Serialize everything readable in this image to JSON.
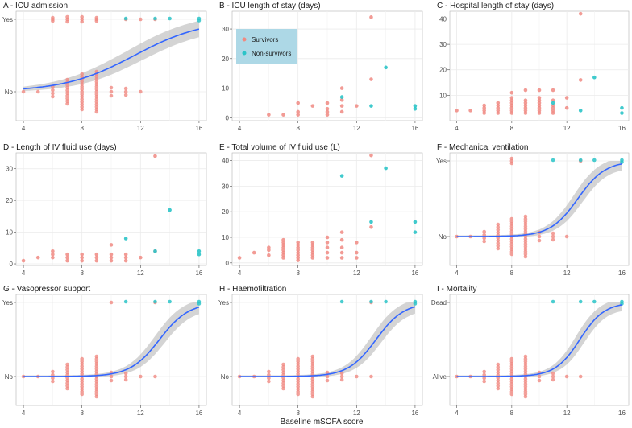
{
  "colors": {
    "survivors": "#F08A82",
    "non_survivors": "#2BC4C8",
    "fit": "#3366FF",
    "ribbon": "#BDBDBD",
    "legend_bg": "#ADD8E6"
  },
  "xlabel": "Baseline mSOFA score",
  "legend": {
    "entries": [
      "Survivors",
      "Non-survivors"
    ],
    "placement": "inside panel B, top-left"
  },
  "chart_data": [
    {
      "panel": "A",
      "type": "scatter",
      "title": "A - ICU admission",
      "binary": true,
      "ylabels": [
        "No",
        "Yes"
      ],
      "xlim": [
        3.5,
        16.5
      ],
      "xticks": [
        4,
        8,
        12,
        16
      ],
      "fit": {
        "type": "logistic",
        "b0": -4.86,
        "b1": 0.42
      },
      "survivors_yes_x": [
        6,
        7,
        8,
        9,
        11,
        12,
        13
      ],
      "survivors_no_x": [
        4,
        5,
        6,
        7,
        8,
        9,
        10,
        11,
        12
      ],
      "non_survivors_yes_x": [
        11,
        13,
        14,
        16
      ]
    },
    {
      "panel": "B",
      "type": "scatter",
      "title": "B - ICU length of stay (days)",
      "ylim": [
        -1,
        36
      ],
      "yticks": [
        0,
        10,
        20,
        30
      ],
      "xlim": [
        3.5,
        16.5
      ],
      "xticks": [
        4,
        8,
        12,
        16
      ],
      "survivors": [
        [
          6,
          1
        ],
        [
          7,
          1
        ],
        [
          8,
          1
        ],
        [
          8,
          2
        ],
        [
          8,
          5
        ],
        [
          9,
          4
        ],
        [
          10,
          1
        ],
        [
          10,
          2
        ],
        [
          10,
          3
        ],
        [
          10,
          5
        ],
        [
          11,
          2
        ],
        [
          11,
          4
        ],
        [
          11,
          6
        ],
        [
          11,
          10
        ],
        [
          12,
          4
        ],
        [
          13,
          13
        ],
        [
          13,
          34
        ]
      ],
      "non_survivors": [
        [
          11,
          7
        ],
        [
          13,
          4
        ],
        [
          14,
          17
        ],
        [
          16,
          3
        ],
        [
          16,
          4
        ]
      ]
    },
    {
      "panel": "C",
      "type": "scatter",
      "title": "C - Hospital length of stay (days)",
      "ylim": [
        0,
        43
      ],
      "yticks": [
        10,
        20,
        30,
        40
      ],
      "xlim": [
        3.5,
        16.5
      ],
      "xticks": [
        4,
        8,
        12,
        16
      ],
      "survivors": [
        [
          4,
          4
        ],
        [
          5,
          4
        ],
        [
          6,
          3
        ],
        [
          6,
          4
        ],
        [
          6,
          5
        ],
        [
          6,
          6
        ],
        [
          7,
          3
        ],
        [
          7,
          4
        ],
        [
          7,
          5
        ],
        [
          7,
          6
        ],
        [
          7,
          7
        ],
        [
          8,
          3
        ],
        [
          8,
          4
        ],
        [
          8,
          5
        ],
        [
          8,
          6
        ],
        [
          8,
          7
        ],
        [
          8,
          8
        ],
        [
          8,
          9
        ],
        [
          8,
          11
        ],
        [
          9,
          3
        ],
        [
          9,
          4
        ],
        [
          9,
          5
        ],
        [
          9,
          6
        ],
        [
          9,
          7
        ],
        [
          9,
          8
        ],
        [
          9,
          12
        ],
        [
          10,
          3
        ],
        [
          10,
          4
        ],
        [
          10,
          5
        ],
        [
          10,
          6
        ],
        [
          10,
          7
        ],
        [
          10,
          8
        ],
        [
          10,
          9
        ],
        [
          10,
          12
        ],
        [
          11,
          3
        ],
        [
          11,
          4
        ],
        [
          11,
          5
        ],
        [
          11,
          6
        ],
        [
          11,
          8
        ],
        [
          11,
          12
        ],
        [
          12,
          5
        ],
        [
          12,
          9
        ],
        [
          13,
          16
        ],
        [
          13,
          42
        ]
      ],
      "non_survivors": [
        [
          11,
          7
        ],
        [
          13,
          4
        ],
        [
          14,
          17
        ],
        [
          16,
          3
        ],
        [
          16,
          5
        ]
      ]
    },
    {
      "panel": "D",
      "type": "scatter",
      "title": "D - Length of IV fluid use (days)",
      "ylim": [
        -0.5,
        35
      ],
      "yticks": [
        0,
        10,
        20,
        30
      ],
      "xlim": [
        3.5,
        16.5
      ],
      "xticks": [
        4,
        8,
        12,
        16
      ],
      "survivors": [
        [
          4,
          1
        ],
        [
          5,
          2
        ],
        [
          6,
          2
        ],
        [
          6,
          3
        ],
        [
          6,
          4
        ],
        [
          7,
          1
        ],
        [
          7,
          2
        ],
        [
          7,
          3
        ],
        [
          8,
          1
        ],
        [
          8,
          2
        ],
        [
          8,
          3
        ],
        [
          9,
          1
        ],
        [
          9,
          2
        ],
        [
          9,
          3
        ],
        [
          10,
          1
        ],
        [
          10,
          2
        ],
        [
          10,
          3
        ],
        [
          10,
          6
        ],
        [
          11,
          1
        ],
        [
          11,
          2
        ],
        [
          11,
          3
        ],
        [
          12,
          2
        ],
        [
          13,
          4
        ],
        [
          13,
          34
        ]
      ],
      "non_survivors": [
        [
          11,
          8
        ],
        [
          13,
          4
        ],
        [
          14,
          17
        ],
        [
          16,
          3
        ],
        [
          16,
          4
        ]
      ]
    },
    {
      "panel": "E",
      "type": "scatter",
      "title": "E - Total volume of IV fluid use (L)",
      "ylim": [
        -1,
        43
      ],
      "yticks": [
        0,
        10,
        20,
        30,
        40
      ],
      "xlim": [
        3.5,
        16.5
      ],
      "xticks": [
        4,
        8,
        12,
        16
      ],
      "survivors": [
        [
          4,
          2
        ],
        [
          5,
          4
        ],
        [
          6,
          3
        ],
        [
          6,
          5
        ],
        [
          6,
          6
        ],
        [
          7,
          2
        ],
        [
          7,
          3
        ],
        [
          7,
          4
        ],
        [
          7,
          5
        ],
        [
          7,
          6
        ],
        [
          7,
          7
        ],
        [
          7,
          8
        ],
        [
          7,
          9
        ],
        [
          8,
          1
        ],
        [
          8,
          2
        ],
        [
          8,
          3
        ],
        [
          8,
          4
        ],
        [
          8,
          5
        ],
        [
          8,
          6
        ],
        [
          8,
          7
        ],
        [
          8,
          8
        ],
        [
          9,
          2
        ],
        [
          9,
          3
        ],
        [
          9,
          4
        ],
        [
          9,
          5
        ],
        [
          9,
          6
        ],
        [
          9,
          7
        ],
        [
          9,
          8
        ],
        [
          10,
          2
        ],
        [
          10,
          4
        ],
        [
          10,
          6
        ],
        [
          10,
          8
        ],
        [
          10,
          10
        ],
        [
          11,
          2
        ],
        [
          11,
          4
        ],
        [
          11,
          6
        ],
        [
          11,
          9
        ],
        [
          11,
          12
        ],
        [
          12,
          2
        ],
        [
          12,
          4
        ],
        [
          12,
          8
        ],
        [
          13,
          14
        ],
        [
          13,
          42
        ]
      ],
      "non_survivors": [
        [
          11,
          34
        ],
        [
          13,
          16
        ],
        [
          14,
          37
        ],
        [
          16,
          12
        ],
        [
          16,
          16
        ]
      ]
    },
    {
      "panel": "F",
      "type": "scatter",
      "title": "F - Mechanical ventilation",
      "binary": true,
      "ylabels": [
        "No",
        "Yes"
      ],
      "xlim": [
        3.5,
        16.5
      ],
      "xticks": [
        4,
        8,
        12,
        16
      ],
      "fit": {
        "type": "logistic",
        "b0": -12.8,
        "b1": 1.0
      },
      "survivors_yes_x": [
        8,
        13
      ],
      "survivors_no_x": [
        4,
        5,
        6,
        7,
        8,
        9,
        10,
        11,
        12
      ],
      "non_survivors_yes_x": [
        11,
        13,
        14,
        16
      ]
    },
    {
      "panel": "G",
      "type": "scatter",
      "title": "G - Vasopressor support",
      "binary": true,
      "ylabels": [
        "No",
        "Yes"
      ],
      "xlim": [
        3.5,
        16.5
      ],
      "xticks": [
        4,
        8,
        12,
        16
      ],
      "fit": {
        "type": "logistic",
        "b0": -13.3,
        "b1": 1.0
      },
      "survivors_yes_x": [
        10,
        13
      ],
      "survivors_no_x": [
        4,
        5,
        6,
        7,
        8,
        9,
        10,
        11,
        12,
        13
      ],
      "non_survivors_yes_x": [
        11,
        13,
        14,
        16
      ]
    },
    {
      "panel": "H",
      "type": "scatter",
      "title": "H - Haemofiltration",
      "binary": true,
      "ylabels": [
        "No",
        "Yes"
      ],
      "xlim": [
        3.5,
        16.5
      ],
      "xticks": [
        4,
        8,
        12,
        16
      ],
      "fit": {
        "type": "logistic",
        "b0": -14.0,
        "b1": 1.05
      },
      "survivors_yes_x": [
        13
      ],
      "survivors_no_x": [
        4,
        5,
        6,
        7,
        8,
        9,
        10,
        11,
        12,
        13
      ],
      "non_survivors_yes_x": [
        11,
        13,
        14,
        16
      ]
    },
    {
      "panel": "I",
      "type": "scatter",
      "title": "I - Mortality",
      "binary": true,
      "ylabels": [
        "Alive",
        "Dead"
      ],
      "xlim": [
        3.5,
        16.5
      ],
      "xticks": [
        4,
        8,
        12,
        16
      ],
      "fit": {
        "type": "logistic",
        "b0": -14.5,
        "b1": 1.12
      },
      "survivors_yes_x": [],
      "survivors_no_x": [
        4,
        5,
        6,
        7,
        8,
        9,
        10,
        11,
        12,
        13
      ],
      "non_survivors_yes_x": [
        11,
        13,
        14,
        16
      ]
    }
  ]
}
